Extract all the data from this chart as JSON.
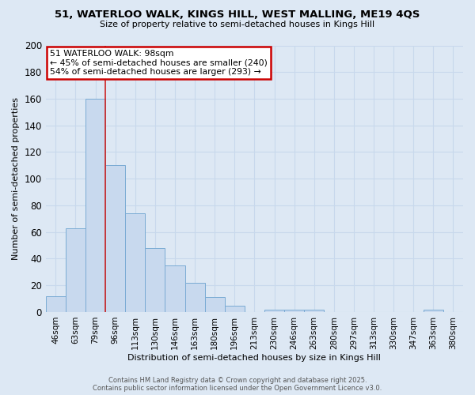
{
  "title_line1": "51, WATERLOO WALK, KINGS HILL, WEST MALLING, ME19 4QS",
  "title_line2": "Size of property relative to semi-detached houses in Kings Hill",
  "xlabel": "Distribution of semi-detached houses by size in Kings Hill",
  "ylabel": "Number of semi-detached properties",
  "categories": [
    "46sqm",
    "63sqm",
    "79sqm",
    "96sqm",
    "113sqm",
    "130sqm",
    "146sqm",
    "163sqm",
    "180sqm",
    "196sqm",
    "213sqm",
    "230sqm",
    "246sqm",
    "263sqm",
    "280sqm",
    "297sqm",
    "313sqm",
    "330sqm",
    "347sqm",
    "363sqm",
    "380sqm"
  ],
  "values": [
    12,
    63,
    160,
    110,
    74,
    48,
    35,
    22,
    11,
    5,
    0,
    2,
    2,
    2,
    0,
    0,
    0,
    0,
    0,
    2,
    0
  ],
  "bar_color": "#c8d9ee",
  "bar_edge_color": "#7aabd4",
  "vline_position": 2.5,
  "vline_color": "#cc2222",
  "annotation_text_line1": "51 WATERLOO WALK: 98sqm",
  "annotation_text_line2": "← 45% of semi-detached houses are smaller (240)",
  "annotation_text_line3": "54% of semi-detached houses are larger (293) →",
  "annotation_box_color": "#ffffff",
  "annotation_border_color": "#cc0000",
  "grid_color": "#c8d8ec",
  "bg_color": "#dde8f4",
  "footer_text_line1": "Contains HM Land Registry data © Crown copyright and database right 2025.",
  "footer_text_line2": "Contains public sector information licensed under the Open Government Licence v3.0.",
  "ylim": [
    0,
    200
  ],
  "yticks": [
    0,
    20,
    40,
    60,
    80,
    100,
    120,
    140,
    160,
    180,
    200
  ]
}
